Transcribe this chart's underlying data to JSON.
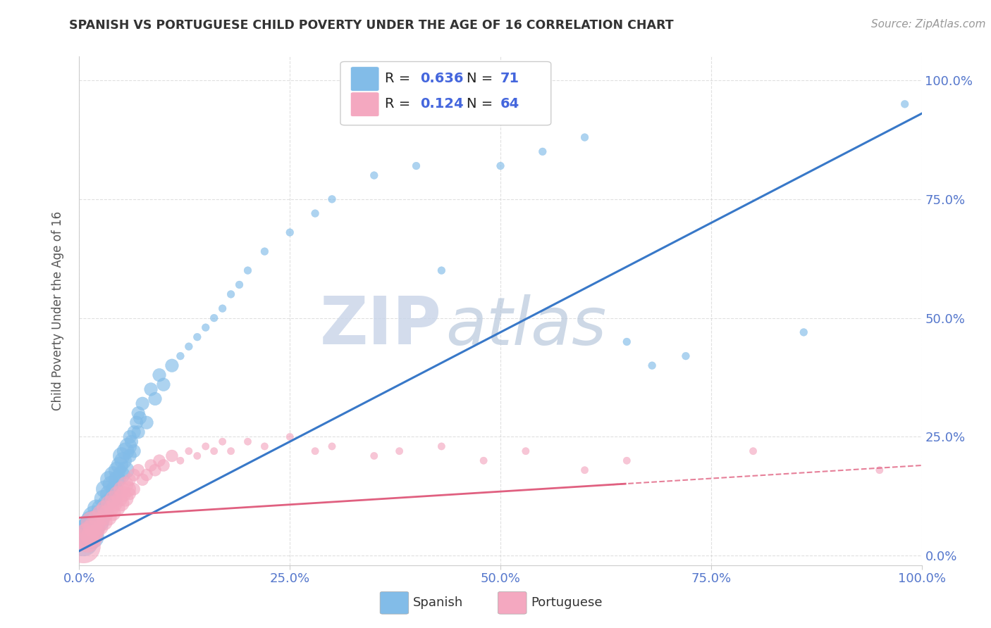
{
  "title": "SPANISH VS PORTUGUESE CHILD POVERTY UNDER THE AGE OF 16 CORRELATION CHART",
  "source": "Source: ZipAtlas.com",
  "ylabel": "Child Poverty Under the Age of 16",
  "xlim": [
    0,
    1
  ],
  "ylim": [
    -0.02,
    1.05
  ],
  "xticks": [
    0.0,
    0.25,
    0.5,
    0.75,
    1.0
  ],
  "xtick_labels": [
    "0.0%",
    "25.0%",
    "50.0%",
    "75.0%",
    "100.0%"
  ],
  "ytick_labels": [
    "0.0%",
    "25.0%",
    "50.0%",
    "75.0%",
    "100.0%"
  ],
  "ytick_vals": [
    0.0,
    0.25,
    0.5,
    0.75,
    1.0
  ],
  "spanish_color": "#82bce8",
  "portuguese_color": "#f4a8c0",
  "spanish_R": 0.636,
  "spanish_N": 71,
  "portuguese_R": 0.124,
  "portuguese_N": 64,
  "trend_blue": "#3878c8",
  "trend_pink": "#e06080",
  "background_color": "#ffffff",
  "grid_color": "#cccccc",
  "title_color": "#333333",
  "source_color": "#999999",
  "legend_R_N_color": "#4466dd",
  "watermark_ZIP_color": "#c8d4e8",
  "watermark_atlas_color": "#b8c8dc",
  "spanish_points": [
    [
      0.005,
      0.03
    ],
    [
      0.008,
      0.05
    ],
    [
      0.01,
      0.04
    ],
    [
      0.012,
      0.06
    ],
    [
      0.015,
      0.07
    ],
    [
      0.015,
      0.04
    ],
    [
      0.018,
      0.08
    ],
    [
      0.02,
      0.06
    ],
    [
      0.02,
      0.1
    ],
    [
      0.022,
      0.08
    ],
    [
      0.025,
      0.1
    ],
    [
      0.025,
      0.07
    ],
    [
      0.028,
      0.12
    ],
    [
      0.03,
      0.09
    ],
    [
      0.03,
      0.14
    ],
    [
      0.032,
      0.11
    ],
    [
      0.035,
      0.13
    ],
    [
      0.035,
      0.16
    ],
    [
      0.038,
      0.15
    ],
    [
      0.04,
      0.17
    ],
    [
      0.04,
      0.12
    ],
    [
      0.042,
      0.14
    ],
    [
      0.045,
      0.18
    ],
    [
      0.045,
      0.16
    ],
    [
      0.048,
      0.19
    ],
    [
      0.05,
      0.17
    ],
    [
      0.05,
      0.21
    ],
    [
      0.052,
      0.2
    ],
    [
      0.055,
      0.22
    ],
    [
      0.055,
      0.18
    ],
    [
      0.058,
      0.23
    ],
    [
      0.06,
      0.21
    ],
    [
      0.06,
      0.25
    ],
    [
      0.062,
      0.24
    ],
    [
      0.065,
      0.26
    ],
    [
      0.065,
      0.22
    ],
    [
      0.068,
      0.28
    ],
    [
      0.07,
      0.26
    ],
    [
      0.07,
      0.3
    ],
    [
      0.072,
      0.29
    ],
    [
      0.075,
      0.32
    ],
    [
      0.08,
      0.28
    ],
    [
      0.085,
      0.35
    ],
    [
      0.09,
      0.33
    ],
    [
      0.095,
      0.38
    ],
    [
      0.1,
      0.36
    ],
    [
      0.11,
      0.4
    ],
    [
      0.12,
      0.42
    ],
    [
      0.13,
      0.44
    ],
    [
      0.14,
      0.46
    ],
    [
      0.15,
      0.48
    ],
    [
      0.16,
      0.5
    ],
    [
      0.17,
      0.52
    ],
    [
      0.18,
      0.55
    ],
    [
      0.19,
      0.57
    ],
    [
      0.2,
      0.6
    ],
    [
      0.22,
      0.64
    ],
    [
      0.25,
      0.68
    ],
    [
      0.28,
      0.72
    ],
    [
      0.3,
      0.75
    ],
    [
      0.35,
      0.8
    ],
    [
      0.4,
      0.82
    ],
    [
      0.43,
      0.6
    ],
    [
      0.5,
      0.82
    ],
    [
      0.55,
      0.85
    ],
    [
      0.6,
      0.88
    ],
    [
      0.65,
      0.45
    ],
    [
      0.68,
      0.4
    ],
    [
      0.72,
      0.42
    ],
    [
      0.86,
      0.47
    ],
    [
      0.98,
      0.95
    ]
  ],
  "portuguese_points": [
    [
      0.005,
      0.02
    ],
    [
      0.008,
      0.04
    ],
    [
      0.01,
      0.03
    ],
    [
      0.012,
      0.05
    ],
    [
      0.015,
      0.04
    ],
    [
      0.015,
      0.07
    ],
    [
      0.018,
      0.06
    ],
    [
      0.02,
      0.05
    ],
    [
      0.02,
      0.08
    ],
    [
      0.022,
      0.07
    ],
    [
      0.025,
      0.06
    ],
    [
      0.025,
      0.09
    ],
    [
      0.028,
      0.08
    ],
    [
      0.03,
      0.07
    ],
    [
      0.03,
      0.1
    ],
    [
      0.032,
      0.09
    ],
    [
      0.035,
      0.11
    ],
    [
      0.035,
      0.08
    ],
    [
      0.038,
      0.1
    ],
    [
      0.04,
      0.12
    ],
    [
      0.04,
      0.09
    ],
    [
      0.042,
      0.11
    ],
    [
      0.045,
      0.13
    ],
    [
      0.045,
      0.1
    ],
    [
      0.048,
      0.12
    ],
    [
      0.05,
      0.14
    ],
    [
      0.05,
      0.11
    ],
    [
      0.052,
      0.13
    ],
    [
      0.055,
      0.15
    ],
    [
      0.055,
      0.12
    ],
    [
      0.058,
      0.14
    ],
    [
      0.06,
      0.16
    ],
    [
      0.06,
      0.13
    ],
    [
      0.065,
      0.17
    ],
    [
      0.065,
      0.14
    ],
    [
      0.07,
      0.18
    ],
    [
      0.075,
      0.16
    ],
    [
      0.08,
      0.17
    ],
    [
      0.085,
      0.19
    ],
    [
      0.09,
      0.18
    ],
    [
      0.095,
      0.2
    ],
    [
      0.1,
      0.19
    ],
    [
      0.11,
      0.21
    ],
    [
      0.12,
      0.2
    ],
    [
      0.13,
      0.22
    ],
    [
      0.14,
      0.21
    ],
    [
      0.15,
      0.23
    ],
    [
      0.16,
      0.22
    ],
    [
      0.17,
      0.24
    ],
    [
      0.18,
      0.22
    ],
    [
      0.2,
      0.24
    ],
    [
      0.22,
      0.23
    ],
    [
      0.25,
      0.25
    ],
    [
      0.28,
      0.22
    ],
    [
      0.3,
      0.23
    ],
    [
      0.35,
      0.21
    ],
    [
      0.38,
      0.22
    ],
    [
      0.43,
      0.23
    ],
    [
      0.48,
      0.2
    ],
    [
      0.53,
      0.22
    ],
    [
      0.6,
      0.18
    ],
    [
      0.65,
      0.2
    ],
    [
      0.8,
      0.22
    ],
    [
      0.95,
      0.18
    ]
  ],
  "sp_large_size": 600,
  "sp_medium_size": 120,
  "sp_small_size": 60,
  "pt_large_size": 500,
  "pt_medium_size": 100,
  "pt_small_size": 55
}
